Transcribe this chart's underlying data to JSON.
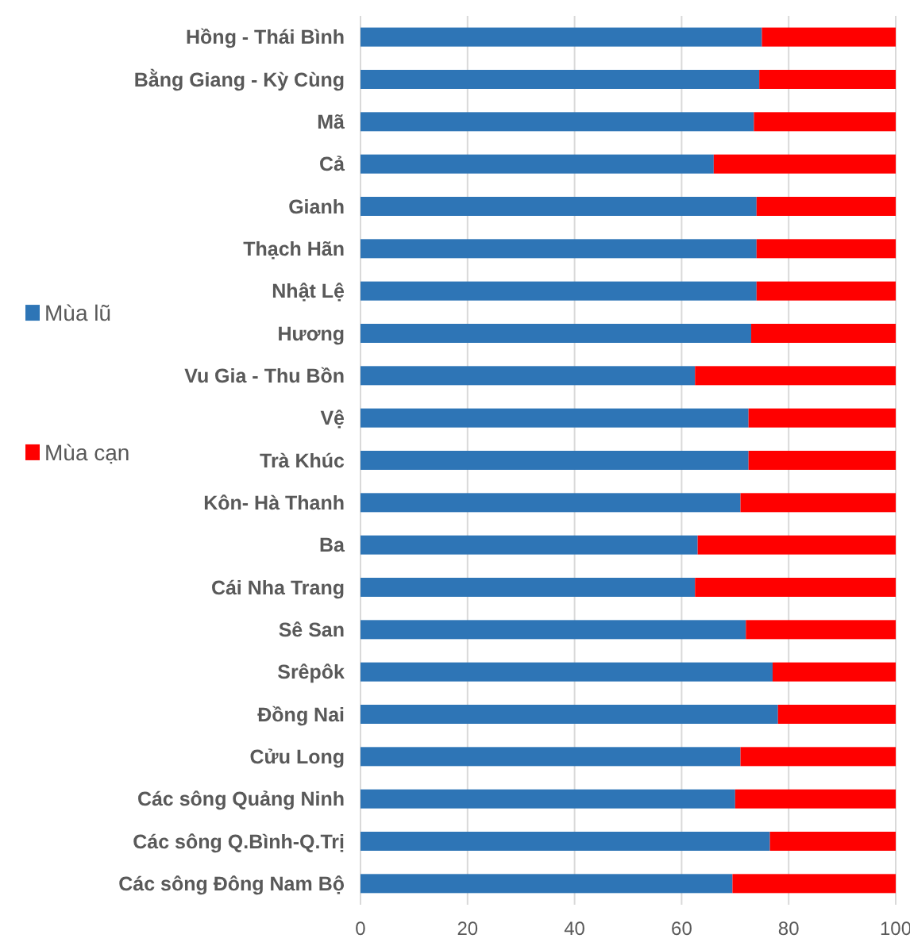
{
  "chart_data": {
    "type": "bar",
    "orientation": "horizontal",
    "stacked": true,
    "categories": [
      "Hồng - Thái Bình",
      "Bằng Giang - Kỳ Cùng",
      "Mã",
      "Cả",
      "Gianh",
      "Thạch Hãn",
      "Nhật Lệ",
      "Hương",
      "Vu Gia - Thu Bồn",
      "Vệ",
      "Trà Khúc",
      "Kôn- Hà Thanh",
      "Ba",
      "Cái Nha Trang",
      "Sê San",
      "Srêpôk",
      "Đồng Nai",
      "Cửu Long",
      "Các sông Quảng Ninh",
      "Các sông Q.Bình-Q.Trị",
      "Các sông Đông Nam Bộ"
    ],
    "series": [
      {
        "name": "Mùa lũ",
        "color": "#2e75b6",
        "values": [
          75,
          74.5,
          73.5,
          66,
          74,
          74,
          74,
          73,
          62.5,
          72.5,
          72.5,
          71,
          63,
          62.5,
          72,
          77,
          78,
          71,
          70,
          76.5,
          69.5
        ]
      },
      {
        "name": "Mùa cạn",
        "color": "#ff0000",
        "values": [
          25,
          25.5,
          26.5,
          34,
          26,
          26,
          26,
          27,
          37.5,
          27.5,
          27.5,
          29,
          37,
          37.5,
          28,
          23,
          22,
          29,
          30,
          23.5,
          30.5
        ]
      }
    ],
    "xlim": [
      0,
      100
    ],
    "xticks": [
      0,
      20,
      40,
      60,
      80,
      100
    ],
    "grid": "x",
    "legend": "left"
  }
}
